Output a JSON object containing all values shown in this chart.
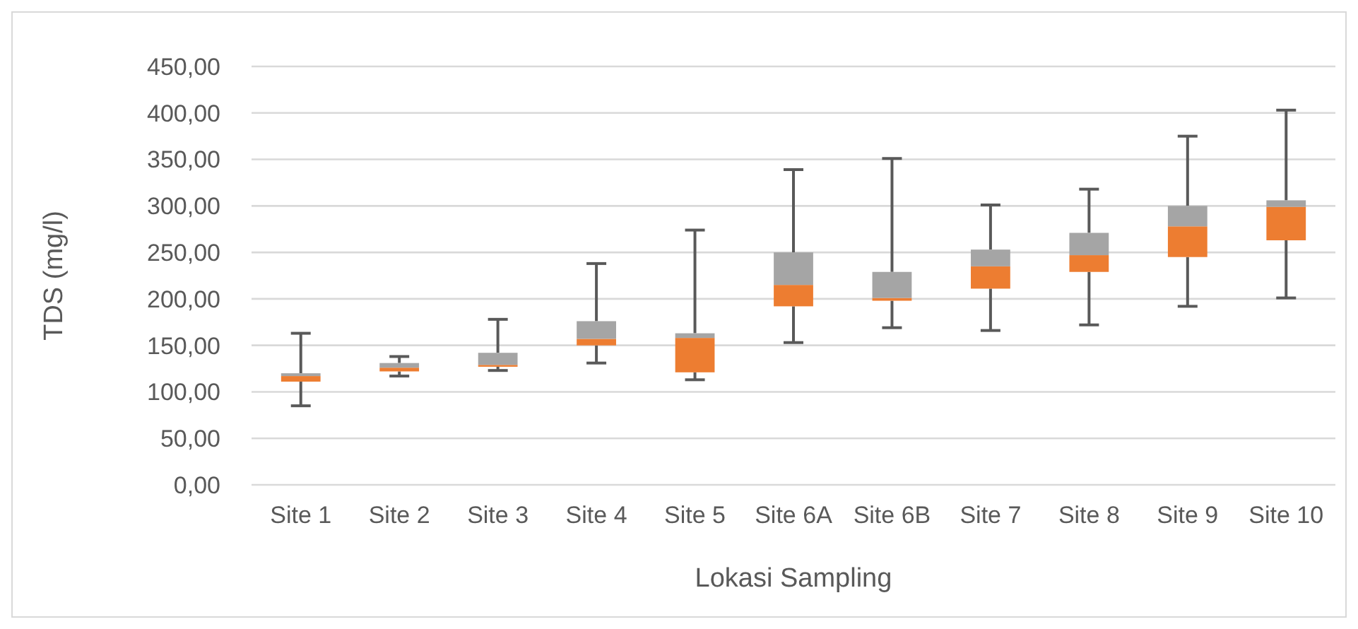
{
  "chart_data": {
    "type": "box",
    "xlabel": "Lokasi Sampling",
    "ylabel": "TDS (mg/l)",
    "categories": [
      "Site 1",
      "Site 2",
      "Site 3",
      "Site 4",
      "Site 5",
      "Site 6A",
      "Site 6B",
      "Site 7",
      "Site 8",
      "Site 9",
      "Site 10"
    ],
    "color": "#a5a5a5",
    "colors": [
      "#ed7d31",
      "#ed7d31",
      "#ed7d31",
      "#ed7d31",
      "#ed7d31",
      "#ed7d31",
      "#ed7d31",
      "#ed7d31",
      "#ed7d31",
      "#ed7d31",
      "#ed7d31"
    ],
    "boxes": [
      {
        "low": 85,
        "q1": 111,
        "median": 117,
        "q3": 120,
        "high": 163
      },
      {
        "low": 117,
        "q1": 122,
        "median": 126,
        "q3": 131,
        "high": 138
      },
      {
        "low": 123,
        "q1": 127,
        "median": 129,
        "q3": 142,
        "high": 178
      },
      {
        "low": 131,
        "q1": 150,
        "median": 157,
        "q3": 176,
        "high": 238
      },
      {
        "low": 113,
        "q1": 121,
        "median": 158,
        "q3": 163,
        "high": 274
      },
      {
        "low": 153,
        "q1": 192,
        "median": 215,
        "q3": 250,
        "high": 339
      },
      {
        "low": 169,
        "q1": 198,
        "median": 201,
        "q3": 229,
        "high": 351
      },
      {
        "low": 166,
        "q1": 211,
        "median": 235,
        "q3": 253,
        "high": 301
      },
      {
        "low": 172,
        "q1": 229,
        "median": 247,
        "q3": 271,
        "high": 318
      },
      {
        "low": 192,
        "q1": 245,
        "median": 278,
        "q3": 300,
        "high": 375
      },
      {
        "low": 201,
        "q1": 263,
        "median": 299,
        "q3": 306,
        "high": 403
      }
    ],
    "ylim": [
      0,
      450
    ],
    "yticks": [
      {
        "value": 0,
        "label": "0,00"
      },
      {
        "value": 50,
        "label": "50,00"
      },
      {
        "value": 100,
        "label": "100,00"
      },
      {
        "value": 150,
        "label": "150,00"
      },
      {
        "value": 200,
        "label": "200,00"
      },
      {
        "value": 250,
        "label": "250,00"
      },
      {
        "value": 300,
        "label": "300,00"
      },
      {
        "value": 350,
        "label": "350,00"
      },
      {
        "value": 400,
        "label": "400,00"
      },
      {
        "value": 450,
        "label": "450,00"
      }
    ],
    "grid": true
  }
}
